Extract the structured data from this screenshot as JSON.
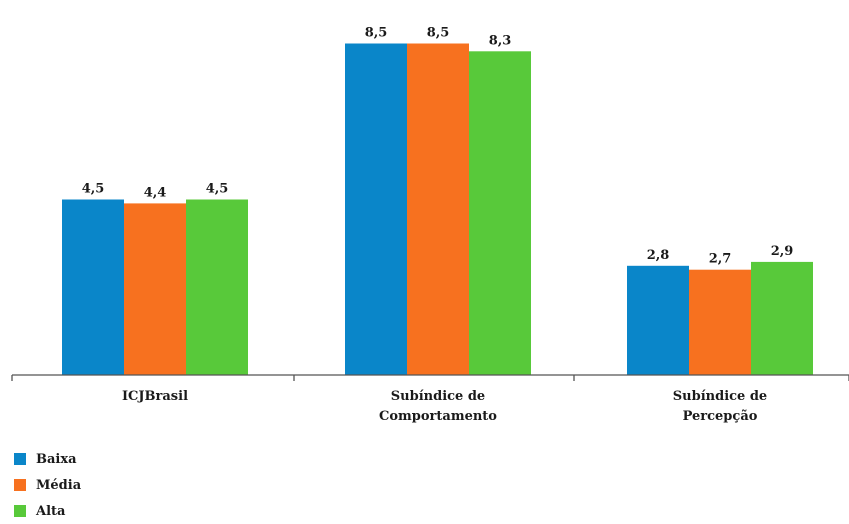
{
  "chart_data": {
    "type": "bar",
    "categories": [
      [
        "ICJBrasil"
      ],
      [
        "Subíndice de",
        "Comportamento"
      ],
      [
        "Subíndice de",
        "Percepção"
      ]
    ],
    "series": [
      {
        "name": "Baixa",
        "color": "#0a86c9",
        "values": [
          4.5,
          8.5,
          2.8
        ],
        "labels": [
          "4,5",
          "8,5",
          "2,8"
        ]
      },
      {
        "name": "Média",
        "color": "#f7711f",
        "values": [
          4.4,
          8.5,
          2.7
        ],
        "labels": [
          "4,4",
          "8,5",
          "2,7"
        ]
      },
      {
        "name": "Alta",
        "color": "#58c93a",
        "values": [
          4.5,
          8.3,
          2.9
        ],
        "labels": [
          "4,5",
          "8,3",
          "2,9"
        ]
      }
    ],
    "ylim": [
      0,
      10
    ],
    "grid": false,
    "legend_position": "bottom-left"
  }
}
